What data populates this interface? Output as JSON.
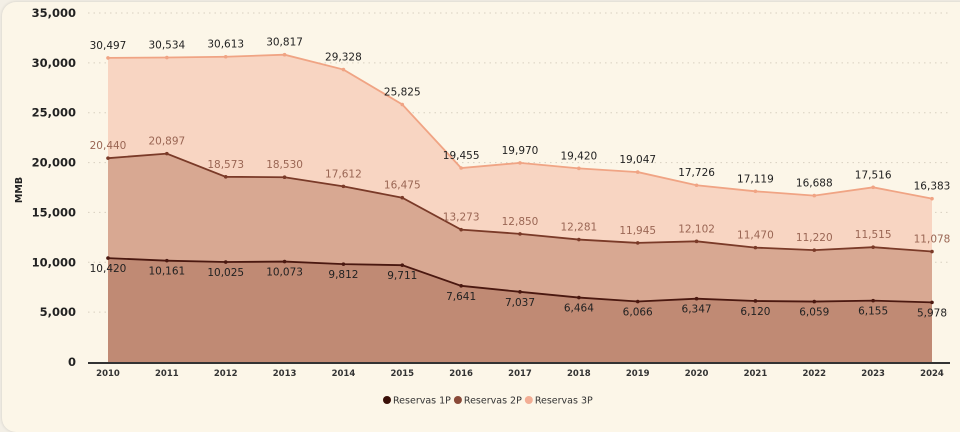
{
  "chart_data": {
    "type": "area",
    "title": "",
    "xlabel": "",
    "ylabel": "MMB",
    "ylim": [
      0,
      35000
    ],
    "yticks": [
      0,
      5000,
      10000,
      15000,
      20000,
      25000,
      30000,
      35000
    ],
    "ytick_labels": [
      "0",
      "5,000",
      "10,000",
      "15,000",
      "20,000",
      "25,000",
      "30,000",
      "35,000"
    ],
    "grid": true,
    "legend_position": "bottom-center",
    "categories": [
      "2010",
      "2011",
      "2012",
      "2013",
      "2014",
      "2015",
      "2016",
      "2017",
      "2018",
      "2019",
      "2020",
      "2021",
      "2022",
      "2023",
      "2024"
    ],
    "series": [
      {
        "name": "Reservas 1P",
        "color": "#4a1810",
        "fill": "#c08a74",
        "label_color": "#222222",
        "values": [
          10420,
          10161,
          10025,
          10073,
          9812,
          9711,
          7641,
          7037,
          6464,
          6066,
          6347,
          6120,
          6059,
          6155,
          5978
        ],
        "labels": [
          "10,420",
          "10,161",
          "10,025",
          "10,073",
          "9,812",
          "9,711",
          "7,641",
          "7,037",
          "6,464",
          "6,066",
          "6,347",
          "6,120",
          "6,059",
          "6,155",
          "5,978"
        ]
      },
      {
        "name": "Reservas 2P",
        "color": "#7a3a28",
        "fill": "#d8a892",
        "label_color": "#9a6654",
        "values": [
          20440,
          20897,
          18573,
          18530,
          17612,
          16475,
          13273,
          12850,
          12281,
          11945,
          12102,
          11470,
          11220,
          11515,
          11078
        ],
        "labels": [
          "20,440",
          "20,897",
          "18,573",
          "18,530",
          "17,612",
          "16,475",
          "13,273",
          "12,850",
          "12,281",
          "11,945",
          "12,102",
          "11,470",
          "11,220",
          "11,515",
          "11,078"
        ]
      },
      {
        "name": "Reservas 3P",
        "color": "#f0a484",
        "fill": "#f8d5c2",
        "label_color": "#222222",
        "values": [
          30497,
          30534,
          30613,
          30817,
          29328,
          25825,
          19455,
          19970,
          19420,
          19047,
          17726,
          17119,
          16688,
          17516,
          16383
        ],
        "labels": [
          "30,497",
          "30,534",
          "30,613",
          "30,817",
          "29,328",
          "25,825",
          "19,455",
          "19,970",
          "19,420",
          "19,047",
          "17,726",
          "17,119",
          "16,688",
          "17,516",
          "16,383"
        ]
      }
    ]
  }
}
